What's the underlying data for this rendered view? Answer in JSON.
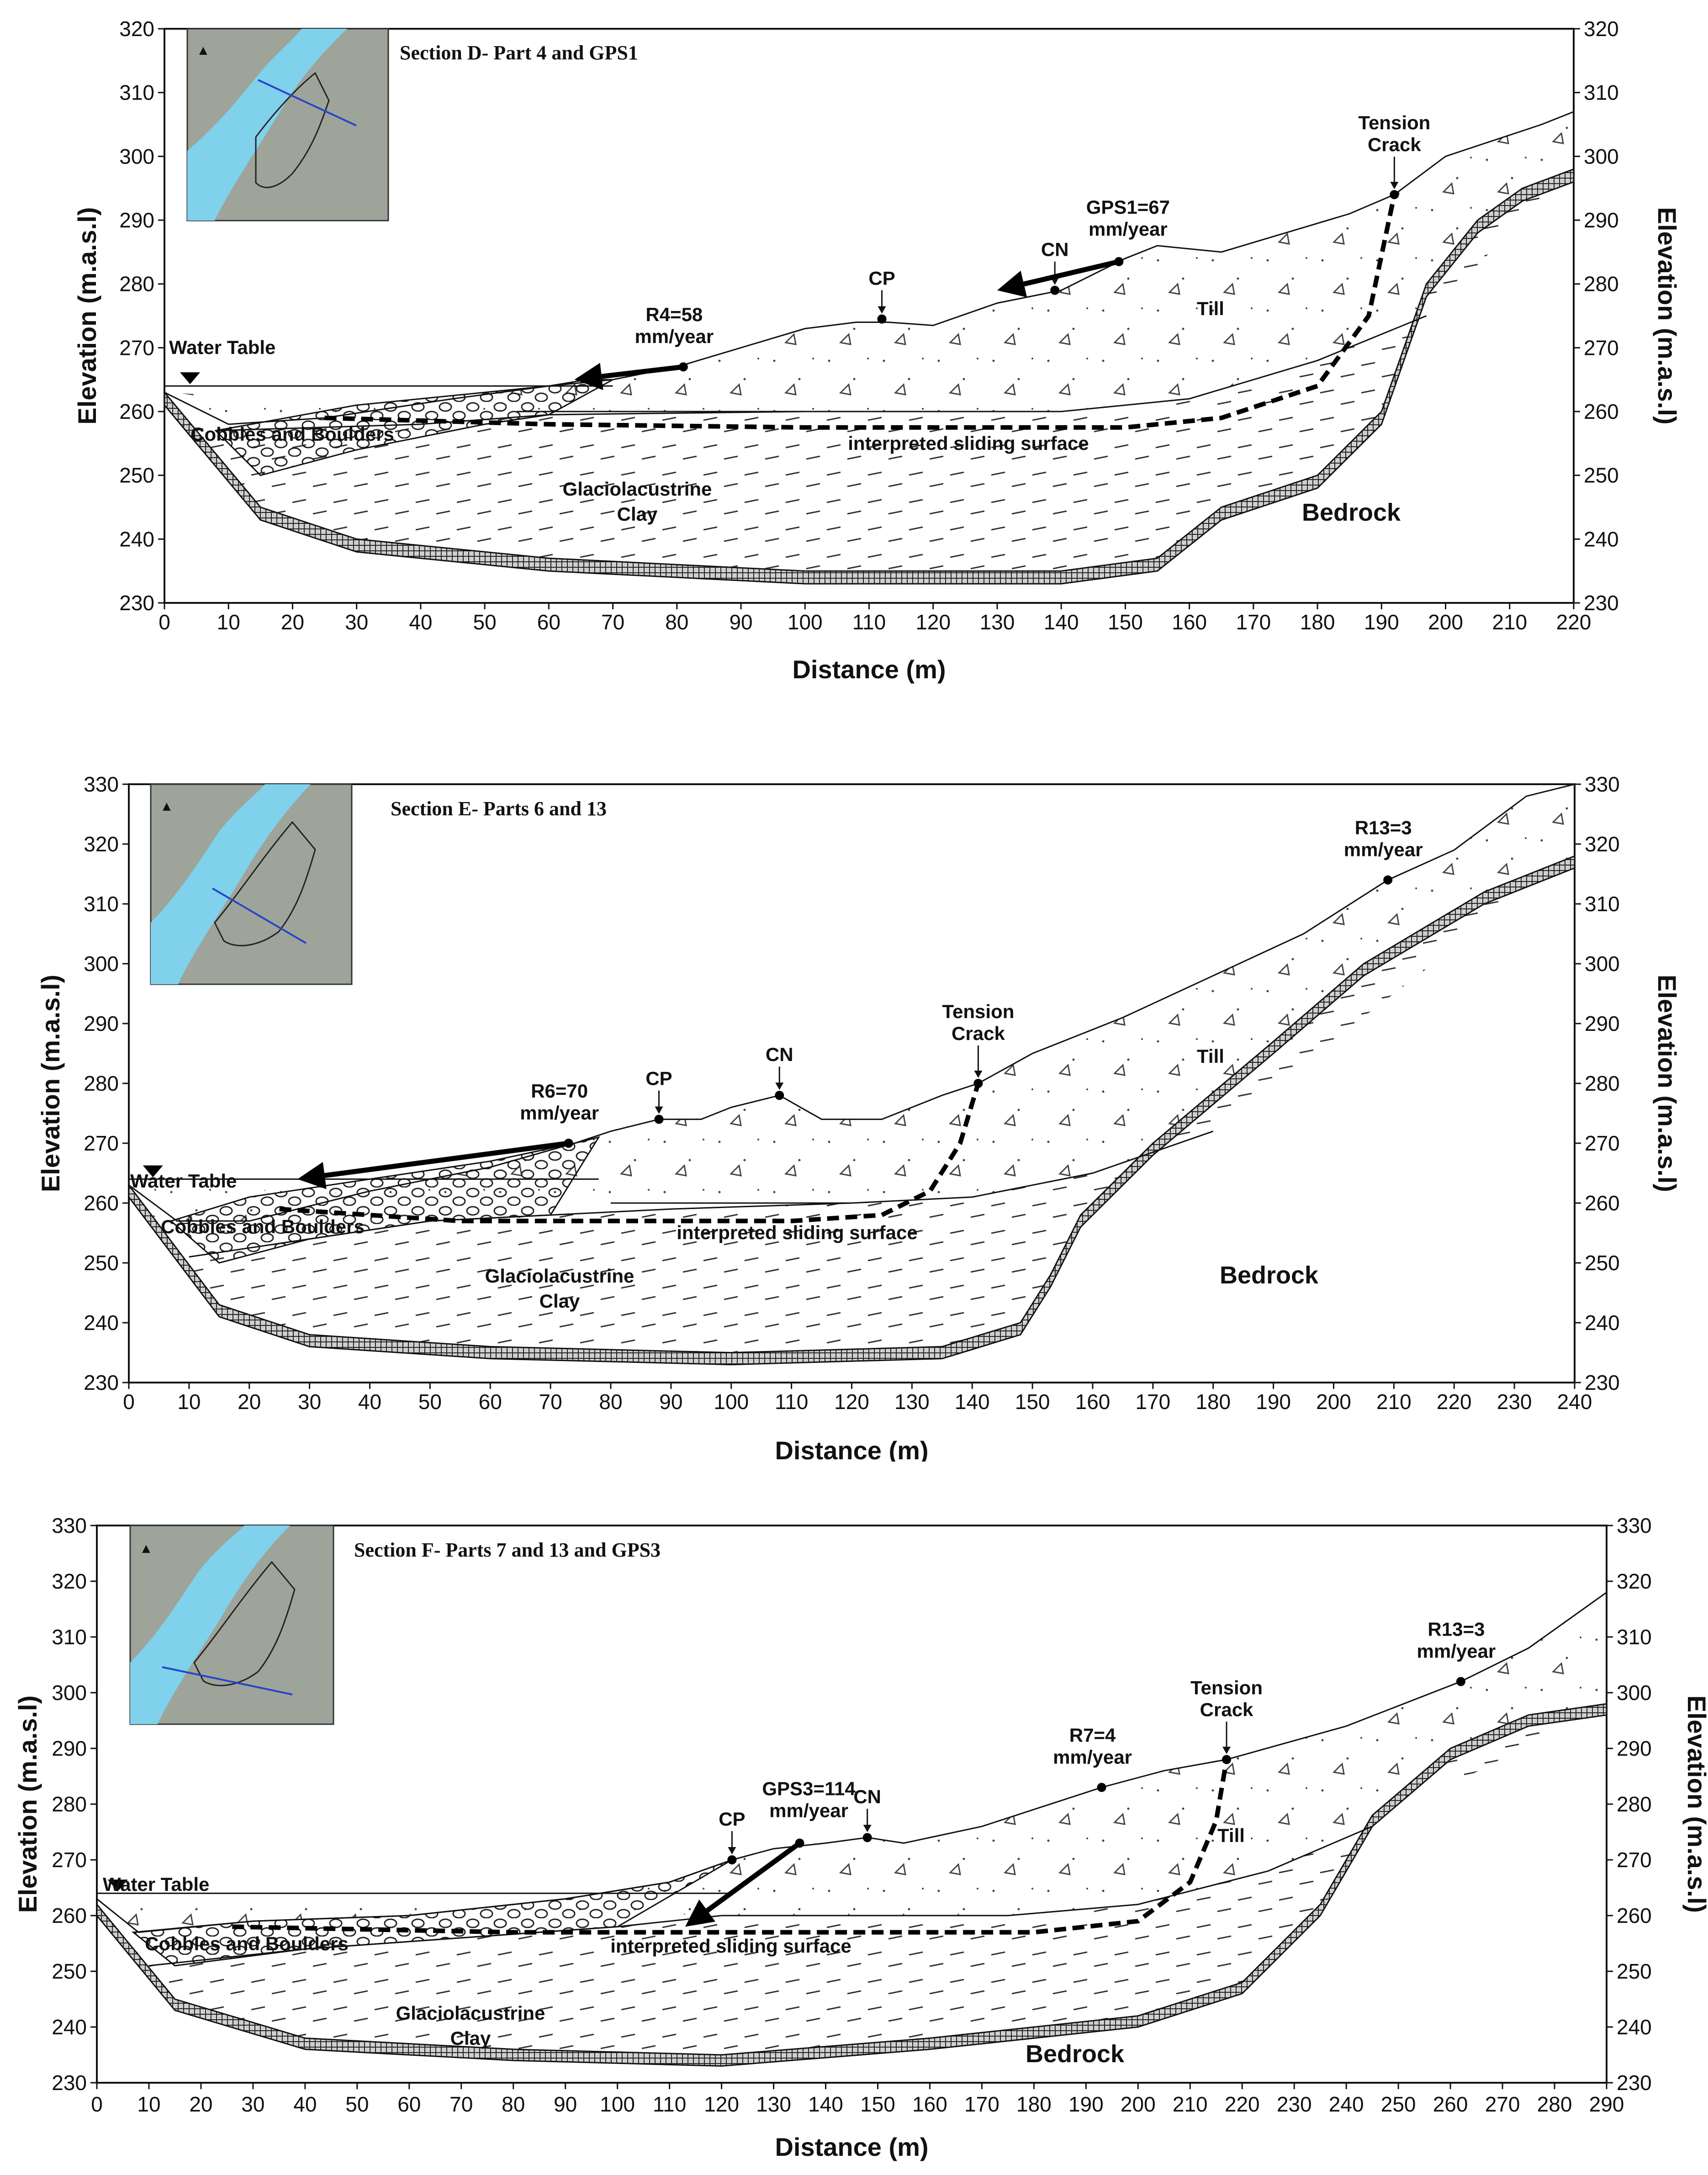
{
  "sections": [
    {
      "id": "D",
      "title": "Section D- Part 4 and GPS1",
      "x_label": "Distance (m)",
      "y_label": "Elevation (m.a.s.l)",
      "xlim": [
        0,
        220
      ],
      "ylim": [
        230,
        320
      ],
      "xticks": [
        "0",
        "10",
        "20",
        "30",
        "40",
        "50",
        "60",
        "70",
        "80",
        "90",
        "100",
        "110",
        "120",
        "130",
        "140",
        "150",
        "160",
        "170",
        "180",
        "190",
        "200",
        "210",
        "220"
      ],
      "yticks": [
        "230",
        "240",
        "250",
        "260",
        "270",
        "280",
        "290",
        "300",
        "310",
        "320"
      ],
      "water_table_label": "Water Table",
      "water_table_elev": 264,
      "labels": {
        "till": "Till",
        "bedrock": "Bedrock",
        "clay_1": "Glaciolacustrine",
        "clay_2": "Clay",
        "cobbles": "Cobbles and Boulders",
        "sliding": "interpreted sliding surface",
        "cp": "CP",
        "cn": "CN",
        "tension_1": "Tension",
        "tension_2": "Crack",
        "r_main_1": "R4=58",
        "r_main_2": "mm/year",
        "gps_1": "GPS1=67",
        "gps_2": "mm/year"
      },
      "profile": {
        "ground": [
          [
            0,
            263
          ],
          [
            10,
            258
          ],
          [
            25,
            259
          ],
          [
            45,
            262
          ],
          [
            60,
            264
          ],
          [
            70,
            265
          ],
          [
            80,
            267
          ],
          [
            90,
            270
          ],
          [
            100,
            273
          ],
          [
            108,
            274
          ],
          [
            113,
            274
          ],
          [
            120,
            273.5
          ],
          [
            130,
            277
          ],
          [
            140,
            279
          ],
          [
            150,
            284
          ],
          [
            155,
            286
          ],
          [
            165,
            285
          ],
          [
            175,
            288
          ],
          [
            185,
            291
          ],
          [
            192,
            294
          ],
          [
            200,
            300
          ],
          [
            215,
            305
          ],
          [
            220,
            307
          ]
        ],
        "bedrock": [
          [
            0,
            263
          ],
          [
            15,
            245
          ],
          [
            30,
            240
          ],
          [
            60,
            237
          ],
          [
            100,
            235
          ],
          [
            140,
            235
          ],
          [
            155,
            237
          ],
          [
            165,
            245
          ],
          [
            180,
            250
          ],
          [
            190,
            260
          ],
          [
            197,
            280
          ],
          [
            205,
            290
          ],
          [
            212,
            295
          ],
          [
            220,
            298
          ]
        ],
        "till_base": [
          [
            55,
            260
          ],
          [
            100,
            260
          ],
          [
            140,
            260
          ],
          [
            160,
            262
          ],
          [
            180,
            268
          ],
          [
            197,
            275
          ]
        ],
        "clay_top": [
          [
            8,
            257
          ],
          [
            40,
            258
          ],
          [
            60,
            259.5
          ],
          [
            100,
            260
          ]
        ],
        "cobbles_top": [
          [
            8,
            257
          ],
          [
            30,
            261
          ],
          [
            50,
            263
          ],
          [
            60,
            264
          ],
          [
            66,
            265
          ],
          [
            70,
            265
          ]
        ],
        "cobbles_bottom": [
          [
            8,
            257
          ],
          [
            15,
            250
          ],
          [
            30,
            254
          ],
          [
            50,
            258
          ],
          [
            60,
            259.5
          ]
        ],
        "sliding": [
          [
            25,
            259
          ],
          [
            60,
            258
          ],
          [
            100,
            257.5
          ],
          [
            150,
            257.5
          ],
          [
            165,
            259
          ],
          [
            180,
            264
          ],
          [
            188,
            275
          ],
          [
            192,
            294
          ]
        ]
      },
      "points": {
        "cp": [
          112,
          274.5
        ],
        "cn": [
          139,
          279
        ],
        "gps": [
          149,
          283.5
        ],
        "r_main": [
          81,
          267
        ],
        "tension": [
          192,
          294
        ],
        "r_secondary": null
      },
      "arrows": [
        {
          "from": [
            149,
            283.5
          ],
          "to": [
            130,
            279
          ]
        },
        {
          "from": [
            81,
            267
          ],
          "to": [
            64,
            265
          ]
        }
      ]
    },
    {
      "id": "E",
      "title": "Section E- Parts 6 and 13",
      "x_label": "Distance (m)",
      "y_label": "Elevation (m.a.s.l)",
      "xlim": [
        0,
        240
      ],
      "ylim": [
        230,
        330
      ],
      "xticks": [
        "0",
        "10",
        "20",
        "30",
        "40",
        "50",
        "60",
        "70",
        "80",
        "90",
        "100",
        "110",
        "120",
        "130",
        "140",
        "150",
        "160",
        "170",
        "180",
        "190",
        "200",
        "210",
        "220",
        "230",
        "240"
      ],
      "yticks": [
        "230",
        "240",
        "250",
        "260",
        "270",
        "280",
        "290",
        "300",
        "310",
        "320",
        "330"
      ],
      "water_table_label": "Water Table",
      "water_table_elev": 264,
      "labels": {
        "till": "Till",
        "bedrock": "Bedrock",
        "clay_1": "Glaciolacustrine",
        "clay_2": "Clay",
        "cobbles": "Cobbles and Boulders",
        "sliding": "interpreted sliding surface",
        "cp": "CP",
        "cn": "CN",
        "tension_1": "Tension",
        "tension_2": "Crack",
        "r_main_1": "R6=70",
        "r_main_2": "mm/year",
        "r_sec_1": "R13=3",
        "r_sec_2": "mm/year"
      },
      "profile": {
        "ground": [
          [
            0,
            263
          ],
          [
            8,
            257
          ],
          [
            20,
            257
          ],
          [
            40,
            262
          ],
          [
            60,
            266
          ],
          [
            74,
            270
          ],
          [
            80,
            272
          ],
          [
            88,
            274
          ],
          [
            95,
            274
          ],
          [
            100,
            276
          ],
          [
            108,
            278
          ],
          [
            115,
            274
          ],
          [
            125,
            274
          ],
          [
            135,
            278
          ],
          [
            141,
            280
          ],
          [
            150,
            285
          ],
          [
            165,
            291
          ],
          [
            180,
            298
          ],
          [
            195,
            305
          ],
          [
            209,
            314
          ],
          [
            220,
            319
          ],
          [
            232,
            328
          ],
          [
            240,
            330
          ]
        ],
        "bedrock": [
          [
            0,
            263
          ],
          [
            15,
            243
          ],
          [
            30,
            238
          ],
          [
            60,
            236
          ],
          [
            100,
            235
          ],
          [
            135,
            236
          ],
          [
            148,
            240
          ],
          [
            153,
            248
          ],
          [
            158,
            258
          ],
          [
            170,
            270
          ],
          [
            190,
            287
          ],
          [
            205,
            300
          ],
          [
            225,
            312
          ],
          [
            240,
            318
          ]
        ],
        "till_base": [
          [
            80,
            260
          ],
          [
            120,
            260
          ],
          [
            140,
            261
          ],
          [
            160,
            265
          ],
          [
            180,
            272
          ]
        ],
        "clay_top": [
          [
            10,
            251
          ],
          [
            30,
            254
          ],
          [
            50,
            257
          ],
          [
            70,
            258
          ],
          [
            90,
            259
          ],
          [
            120,
            260
          ]
        ],
        "cobbles_top": [
          [
            7,
            257
          ],
          [
            20,
            261
          ],
          [
            40,
            264
          ],
          [
            60,
            267
          ],
          [
            74,
            270
          ],
          [
            78,
            271
          ]
        ],
        "cobbles_bottom": [
          [
            7,
            257
          ],
          [
            15,
            250
          ],
          [
            30,
            254
          ],
          [
            50,
            257
          ],
          [
            70,
            258
          ]
        ],
        "sliding": [
          [
            25,
            259
          ],
          [
            55,
            257
          ],
          [
            80,
            257
          ],
          [
            110,
            257
          ],
          [
            125,
            258
          ],
          [
            133,
            262
          ],
          [
            138,
            270
          ],
          [
            141,
            280
          ]
        ]
      },
      "points": {
        "cp": [
          88,
          274
        ],
        "cn": [
          108,
          278
        ],
        "gps": null,
        "r_main": [
          73,
          270
        ],
        "tension": [
          141,
          280
        ],
        "r_secondary": [
          209,
          314
        ]
      },
      "arrows": [
        {
          "from": [
            73,
            270
          ],
          "to": [
            28,
            264
          ]
        }
      ]
    },
    {
      "id": "F",
      "title": "Section F- Parts 7 and 13 and GPS3",
      "x_label": "Distance (m)",
      "y_label": "Elevation (m.a.s.l)",
      "xlim": [
        0,
        290
      ],
      "ylim": [
        230,
        330
      ],
      "xticks": [
        "0",
        "10",
        "20",
        "30",
        "40",
        "50",
        "60",
        "70",
        "80",
        "90",
        "100",
        "110",
        "120",
        "130",
        "140",
        "150",
        "160",
        "170",
        "180",
        "190",
        "200",
        "210",
        "220",
        "230",
        "240",
        "250",
        "260",
        "270",
        "280",
        "290"
      ],
      "yticks": [
        "230",
        "240",
        "250",
        "260",
        "270",
        "280",
        "290",
        "300",
        "310",
        "320",
        "330"
      ],
      "water_table_label": "Water Table",
      "water_table_elev": 264,
      "labels": {
        "till": "Till",
        "bedrock": "Bedrock",
        "clay_1": "Glaciolacustrine",
        "clay_2": "Clay",
        "cobbles": "Cobbles and Boulders",
        "sliding": "interpreted sliding surface",
        "cp": "CP",
        "cn": "CN",
        "tension_1": "Tension",
        "tension_2": "Crack",
        "r_main_1": "R7=4",
        "r_main_2": "mm/year",
        "r_sec_1": "R13=3",
        "r_sec_2": "mm/year",
        "gps_1": "GPS3=114",
        "gps_2": "mm/year"
      },
      "profile": {
        "ground": [
          [
            0,
            263
          ],
          [
            8,
            257
          ],
          [
            30,
            259
          ],
          [
            60,
            260
          ],
          [
            90,
            263
          ],
          [
            110,
            266
          ],
          [
            122,
            270
          ],
          [
            130,
            272
          ],
          [
            140,
            273
          ],
          [
            148,
            274
          ],
          [
            155,
            273
          ],
          [
            170,
            276
          ],
          [
            193,
            283
          ],
          [
            205,
            286
          ],
          [
            217,
            288
          ],
          [
            240,
            294
          ],
          [
            262,
            302
          ],
          [
            275,
            308
          ],
          [
            290,
            318
          ]
        ],
        "bedrock": [
          [
            0,
            262
          ],
          [
            15,
            245
          ],
          [
            40,
            238
          ],
          [
            80,
            236
          ],
          [
            120,
            235
          ],
          [
            160,
            238
          ],
          [
            200,
            242
          ],
          [
            220,
            248
          ],
          [
            235,
            262
          ],
          [
            245,
            278
          ],
          [
            260,
            290
          ],
          [
            275,
            296
          ],
          [
            290,
            298
          ]
        ],
        "till_base": [
          [
            120,
            260
          ],
          [
            150,
            260
          ],
          [
            175,
            260
          ],
          [
            200,
            262
          ],
          [
            225,
            268
          ],
          [
            245,
            276
          ]
        ],
        "clay_top": [
          [
            10,
            251
          ],
          [
            40,
            254
          ],
          [
            70,
            256
          ],
          [
            100,
            258
          ],
          [
            120,
            260
          ]
        ],
        "cobbles_top": [
          [
            7,
            257
          ],
          [
            30,
            259
          ],
          [
            60,
            260
          ],
          [
            90,
            263
          ],
          [
            110,
            266
          ],
          [
            122,
            270
          ]
        ],
        "cobbles_bottom": [
          [
            7,
            257
          ],
          [
            15,
            251
          ],
          [
            40,
            254
          ],
          [
            70,
            256
          ],
          [
            100,
            258
          ]
        ],
        "sliding": [
          [
            26,
            258
          ],
          [
            80,
            257
          ],
          [
            130,
            257
          ],
          [
            180,
            257
          ],
          [
            200,
            259
          ],
          [
            210,
            266
          ],
          [
            215,
            277
          ],
          [
            217,
            288
          ]
        ]
      },
      "points": {
        "cp": [
          122,
          270
        ],
        "cn": [
          148,
          274
        ],
        "gps": [
          135,
          273
        ],
        "r_main": [
          193,
          283
        ],
        "tension": [
          217,
          288
        ],
        "r_secondary": [
          262,
          302
        ]
      },
      "arrows": [
        {
          "from": [
            135,
            273
          ],
          "to": [
            113,
            258
          ]
        }
      ]
    }
  ]
}
